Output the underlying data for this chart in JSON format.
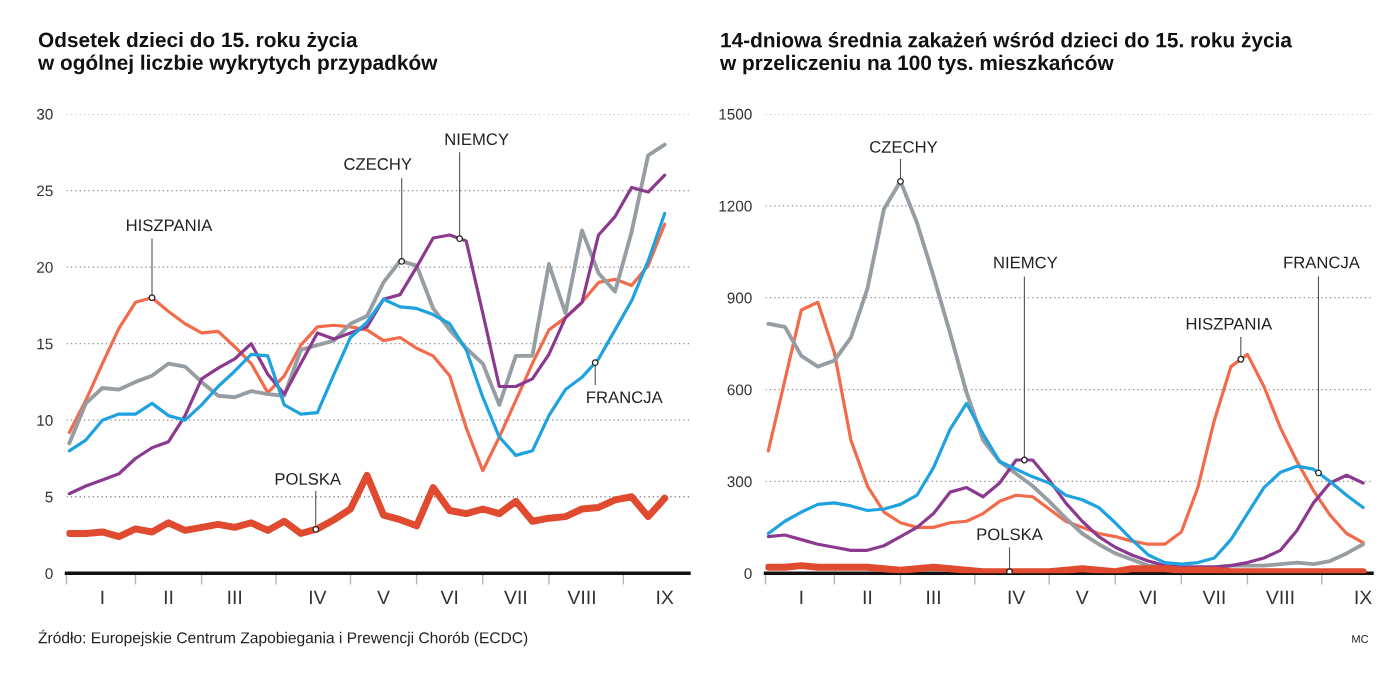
{
  "chart_data": [
    {
      "type": "line",
      "title": "Odsetek dzieci do 15. roku życia\nw ogólnej liczbie wykrytych przypadków",
      "categories": [
        null,
        null,
        "I",
        null,
        null,
        null,
        "II",
        null,
        null,
        null,
        "III",
        null,
        null,
        null,
        null,
        "IV",
        null,
        null,
        null,
        "V",
        null,
        null,
        null,
        "VI",
        null,
        null,
        null,
        "VII",
        null,
        null,
        null,
        "VIII",
        null,
        null,
        null,
        null,
        "IX"
      ],
      "ylim": [
        0,
        30
      ],
      "yticks": [
        0,
        5,
        10,
        15,
        20,
        25,
        30
      ],
      "grid": "y",
      "series": [
        {
          "name": "HISZPANIA",
          "color": "#f26b4b",
          "values": [
            9.2,
            11.3,
            13.7,
            16.0,
            17.7,
            18.0,
            17.1,
            16.3,
            15.7,
            15.8,
            14.8,
            13.7,
            11.8,
            12.9,
            14.9,
            16.1,
            16.2,
            16.1,
            15.9,
            15.2,
            15.4,
            14.7,
            14.2,
            12.9,
            9.5,
            6.7,
            8.9,
            11.3,
            13.7,
            15.9,
            16.7,
            17.7,
            19.0,
            19.2,
            18.8,
            20.1,
            22.8
          ]
        },
        {
          "name": "CZECHY",
          "color": "#979ea3",
          "values": [
            8.5,
            11.1,
            12.1,
            12.0,
            12.5,
            12.9,
            13.7,
            13.5,
            12.5,
            11.6,
            11.5,
            11.9,
            11.7,
            11.6,
            14.6,
            14.9,
            15.2,
            16.3,
            16.8,
            19.0,
            20.4,
            20.1,
            17.3,
            15.9,
            14.7,
            13.7,
            11.0,
            14.2,
            14.2,
            20.2,
            17.0,
            22.4,
            19.6,
            18.4,
            22.3,
            27.3,
            28.0
          ]
        },
        {
          "name": "NIEMCY",
          "color": "#8b3a8f",
          "values": [
            5.2,
            5.7,
            6.1,
            6.5,
            7.5,
            8.2,
            8.6,
            10.3,
            12.7,
            13.4,
            14.0,
            15.0,
            13.0,
            11.7,
            13.7,
            15.7,
            15.3,
            15.7,
            16.1,
            17.9,
            18.2,
            20.0,
            21.9,
            22.1,
            21.7,
            17.0,
            12.2,
            12.2,
            12.7,
            14.3,
            16.7,
            17.7,
            22.1,
            23.3,
            25.2,
            24.9,
            26.0
          ]
        },
        {
          "name": "FRANCJA",
          "color": "#1ea2e0",
          "values": [
            8.0,
            8.7,
            10.0,
            10.4,
            10.4,
            11.1,
            10.3,
            10.0,
            11.0,
            12.2,
            13.2,
            14.3,
            14.2,
            11.0,
            10.4,
            10.5,
            13.0,
            15.4,
            16.4,
            17.9,
            17.4,
            17.3,
            16.9,
            16.3,
            14.6,
            11.5,
            8.9,
            7.7,
            8.0,
            10.3,
            12.0,
            12.8,
            14.0,
            15.9,
            17.8,
            20.4,
            23.5
          ]
        },
        {
          "name": "POLSKA",
          "color": "#e04a2f",
          "values": [
            2.6,
            2.6,
            2.7,
            2.4,
            2.9,
            2.7,
            3.3,
            2.8,
            3.0,
            3.2,
            3.0,
            3.3,
            2.8,
            3.4,
            2.6,
            2.9,
            3.5,
            4.2,
            6.4,
            3.8,
            3.5,
            3.1,
            5.6,
            4.1,
            3.9,
            4.2,
            3.9,
            4.7,
            3.4,
            3.6,
            3.7,
            4.2,
            4.3,
            4.8,
            5.0,
            3.7,
            4.9
          ]
        }
      ],
      "annotations": [
        "Źródło: Europejskie Centrum Zapobiegania i Prewencji Chorób (ECDC)"
      ]
    },
    {
      "type": "line",
      "title": "14-dniowa średnia zakażeń wśród dzieci do 15. roku życia\nw przeliczeniu na 100 tys. mieszkańców",
      "categories": [
        null,
        null,
        "I",
        null,
        null,
        null,
        "II",
        null,
        null,
        null,
        "III",
        null,
        null,
        null,
        null,
        "IV",
        null,
        null,
        null,
        "V",
        null,
        null,
        null,
        "VI",
        null,
        null,
        null,
        "VII",
        null,
        null,
        null,
        "VIII",
        null,
        null,
        null,
        null,
        "IX"
      ],
      "ylim": [
        0,
        1500
      ],
      "yticks": [
        0,
        300,
        600,
        900,
        1200,
        1500
      ],
      "grid": "y",
      "series": [
        {
          "name": "HISZPANIA",
          "color": "#f26b4b",
          "values": [
            400,
            630,
            860,
            885,
            720,
            435,
            285,
            200,
            165,
            150,
            150,
            165,
            170,
            195,
            235,
            255,
            250,
            210,
            170,
            150,
            130,
            120,
            105,
            95,
            95,
            135,
            280,
            500,
            675,
            715,
            610,
            475,
            365,
            270,
            190,
            130,
            100
          ]
        },
        {
          "name": "CZECHY",
          "color": "#979ea3",
          "values": [
            815,
            805,
            710,
            675,
            695,
            770,
            930,
            1190,
            1280,
            1145,
            970,
            785,
            590,
            435,
            365,
            325,
            285,
            235,
            180,
            130,
            95,
            65,
            45,
            25,
            20,
            20,
            20,
            20,
            25,
            25,
            25,
            30,
            35,
            30,
            40,
            65,
            95
          ]
        },
        {
          "name": "NIEMCY",
          "color": "#8b3a8f",
          "values": [
            120,
            125,
            110,
            95,
            85,
            75,
            75,
            90,
            120,
            150,
            195,
            265,
            280,
            250,
            295,
            370,
            370,
            305,
            230,
            170,
            120,
            85,
            60,
            40,
            25,
            20,
            20,
            20,
            25,
            35,
            50,
            75,
            140,
            230,
            295,
            320,
            295
          ]
        },
        {
          "name": "FRANCJA",
          "color": "#1ea2e0",
          "values": [
            130,
            170,
            200,
            225,
            230,
            220,
            205,
            210,
            225,
            255,
            345,
            470,
            555,
            455,
            365,
            340,
            315,
            295,
            255,
            240,
            215,
            165,
            110,
            60,
            35,
            30,
            35,
            50,
            110,
            195,
            280,
            330,
            350,
            340,
            300,
            255,
            215
          ]
        },
        {
          "name": "POLSKA",
          "color": "#e04a2f",
          "values": [
            20,
            20,
            25,
            20,
            20,
            20,
            20,
            15,
            10,
            15,
            20,
            15,
            10,
            5,
            5,
            5,
            5,
            5,
            10,
            15,
            10,
            5,
            15,
            15,
            15,
            10,
            10,
            10,
            5,
            5,
            5,
            5,
            5,
            5,
            5,
            5,
            5
          ]
        }
      ],
      "annotations": [
        "MC"
      ]
    }
  ]
}
